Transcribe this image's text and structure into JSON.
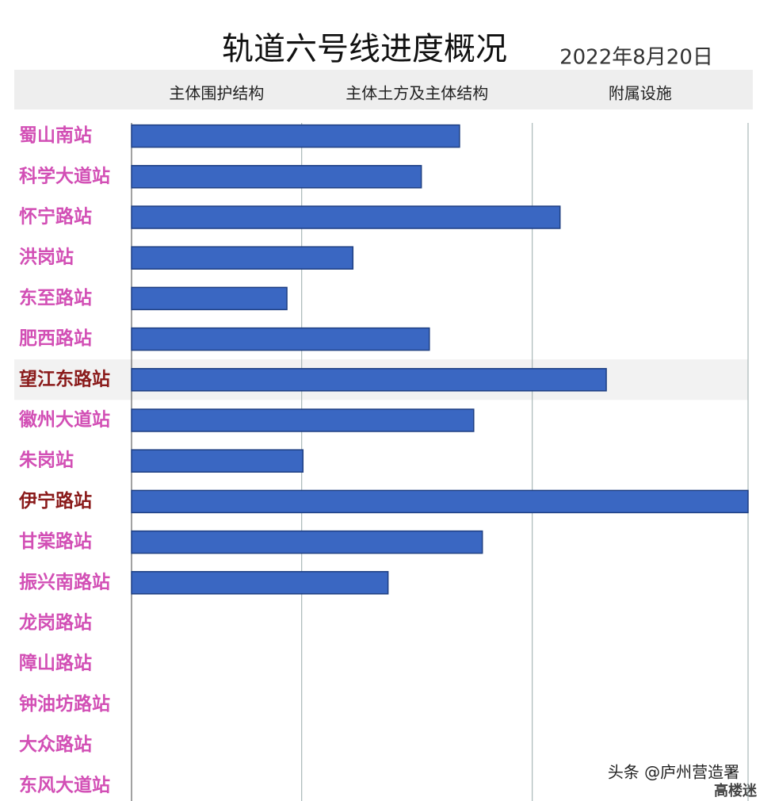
{
  "chart_data": {
    "type": "bar",
    "orientation": "horizontal",
    "title": "轨道六号线进度概况",
    "subtitle": "2022年8月20日",
    "phases": [
      "主体围护结构",
      "主体土方及主体结构",
      "附属设施"
    ],
    "categories": [
      "蜀山南站",
      "科学大道站",
      "怀宁路站",
      "洪岗站",
      "东至路站",
      "肥西路站",
      "望江东路站",
      "徽州大道站",
      "朱岗站",
      "伊宁路站",
      "甘棠路站",
      "振兴南路站",
      "龙岗路站",
      "障山路站",
      "钟油坊路站",
      "大众路站",
      "东风大道站"
    ],
    "values": [
      53.2,
      47.0,
      69.5,
      35.9,
      25.2,
      48.3,
      77.0,
      55.5,
      27.8,
      100,
      56.9,
      41.6,
      null,
      null,
      null,
      null,
      null
    ],
    "color": "#3a67c2",
    "category_colors": [
      "#d24fb5",
      "#d24fb5",
      "#d24fb5",
      "#d24fb5",
      "#d24fb5",
      "#d24fb5",
      "#8a1a1a",
      "#d24fb5",
      "#d24fb5",
      "#8a1a1a",
      "#d24fb5",
      "#d24fb5",
      "#d24fb5",
      "#d24fb5",
      "#d24fb5",
      "#d24fb5",
      "#d24fb5"
    ],
    "xlim": [
      0,
      100
    ],
    "xticks": [
      0,
      27.6,
      65.0,
      100
    ],
    "grid": true,
    "watermark": "头条 @庐州营造署",
    "watermark2": "高楼迷"
  }
}
